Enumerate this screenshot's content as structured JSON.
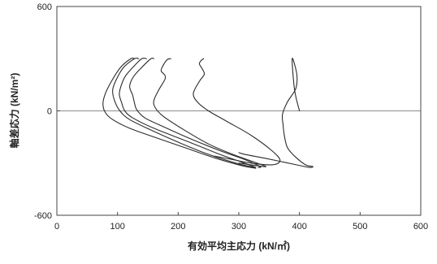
{
  "chart_data": {
    "type": "line",
    "title": "",
    "xlabel": "有効平均主応力 (kN/㎡)",
    "ylabel": "軸差応力 (kN/m²)",
    "xlim": [
      0,
      600
    ],
    "ylim": [
      -600,
      600
    ],
    "x_ticks": [
      "0",
      "100",
      "200",
      "300",
      "400",
      "500",
      "600"
    ],
    "y_ticks": [
      "600",
      "0",
      "-600"
    ],
    "grid": false,
    "zero_line": true,
    "legend": "none",
    "colors": {
      "line": "#2b2b2b",
      "axis": "#444444",
      "zero_line": "#666666"
    },
    "series": [
      {
        "x": [
          400,
          392,
          388,
          395,
          396,
          393,
          380,
          372,
          373,
          375,
          380,
          392,
          410,
          422,
          416,
          395,
          368,
          340,
          310,
          300
        ],
        "y": [
          0,
          120,
          300,
          225,
          170,
          120,
          50,
          -20,
          -80,
          -140,
          -210,
          -260,
          -310,
          -320,
          -325,
          -310,
          -290,
          -270,
          -250,
          -240
        ]
      },
      {
        "x": [
          242,
          238,
          235,
          240,
          243,
          235,
          225,
          232,
          250,
          280,
          320,
          355,
          368,
          355,
          320,
          290,
          260
        ],
        "y": [
          300,
          290,
          270,
          240,
          210,
          170,
          100,
          50,
          0,
          -60,
          -140,
          -230,
          -285,
          -310,
          -300,
          -280,
          -260
        ]
      },
      {
        "x": [
          188,
          182,
          175,
          172,
          178,
          178,
          168,
          160,
          162,
          175,
          210,
          250,
          290,
          330,
          345,
          330,
          300
        ],
        "y": [
          300,
          295,
          260,
          230,
          205,
          180,
          120,
          60,
          20,
          -30,
          -110,
          -190,
          -250,
          -300,
          -320,
          -315,
          -300
        ]
      },
      {
        "x": [
          160,
          155,
          140,
          126,
          120,
          125,
          128,
          132,
          145,
          175,
          220,
          270,
          310,
          335,
          332
        ],
        "y": [
          300,
          300,
          250,
          195,
          140,
          90,
          45,
          5,
          -40,
          -90,
          -160,
          -230,
          -280,
          -320,
          -325
        ]
      },
      {
        "x": [
          148,
          140,
          128,
          113,
          106,
          103,
          107,
          112,
          125,
          160,
          215,
          265,
          305,
          328
        ],
        "y": [
          300,
          300,
          260,
          200,
          145,
          95,
          45,
          0,
          -40,
          -100,
          -175,
          -245,
          -295,
          -325
        ]
      },
      {
        "x": [
          135,
          128,
          110,
          98,
          92,
          95,
          104,
          120,
          155,
          200,
          250,
          300,
          326
        ],
        "y": [
          300,
          300,
          250,
          180,
          120,
          60,
          0,
          -50,
          -110,
          -180,
          -250,
          -305,
          -325
        ]
      },
      {
        "x": [
          128,
          122,
          105,
          90,
          80,
          76,
          80,
          92,
          120,
          160,
          210,
          260,
          305,
          328
        ],
        "y": [
          300,
          300,
          250,
          170,
          100,
          40,
          -10,
          -50,
          -100,
          -150,
          -210,
          -270,
          -315,
          -330
        ]
      }
    ]
  }
}
